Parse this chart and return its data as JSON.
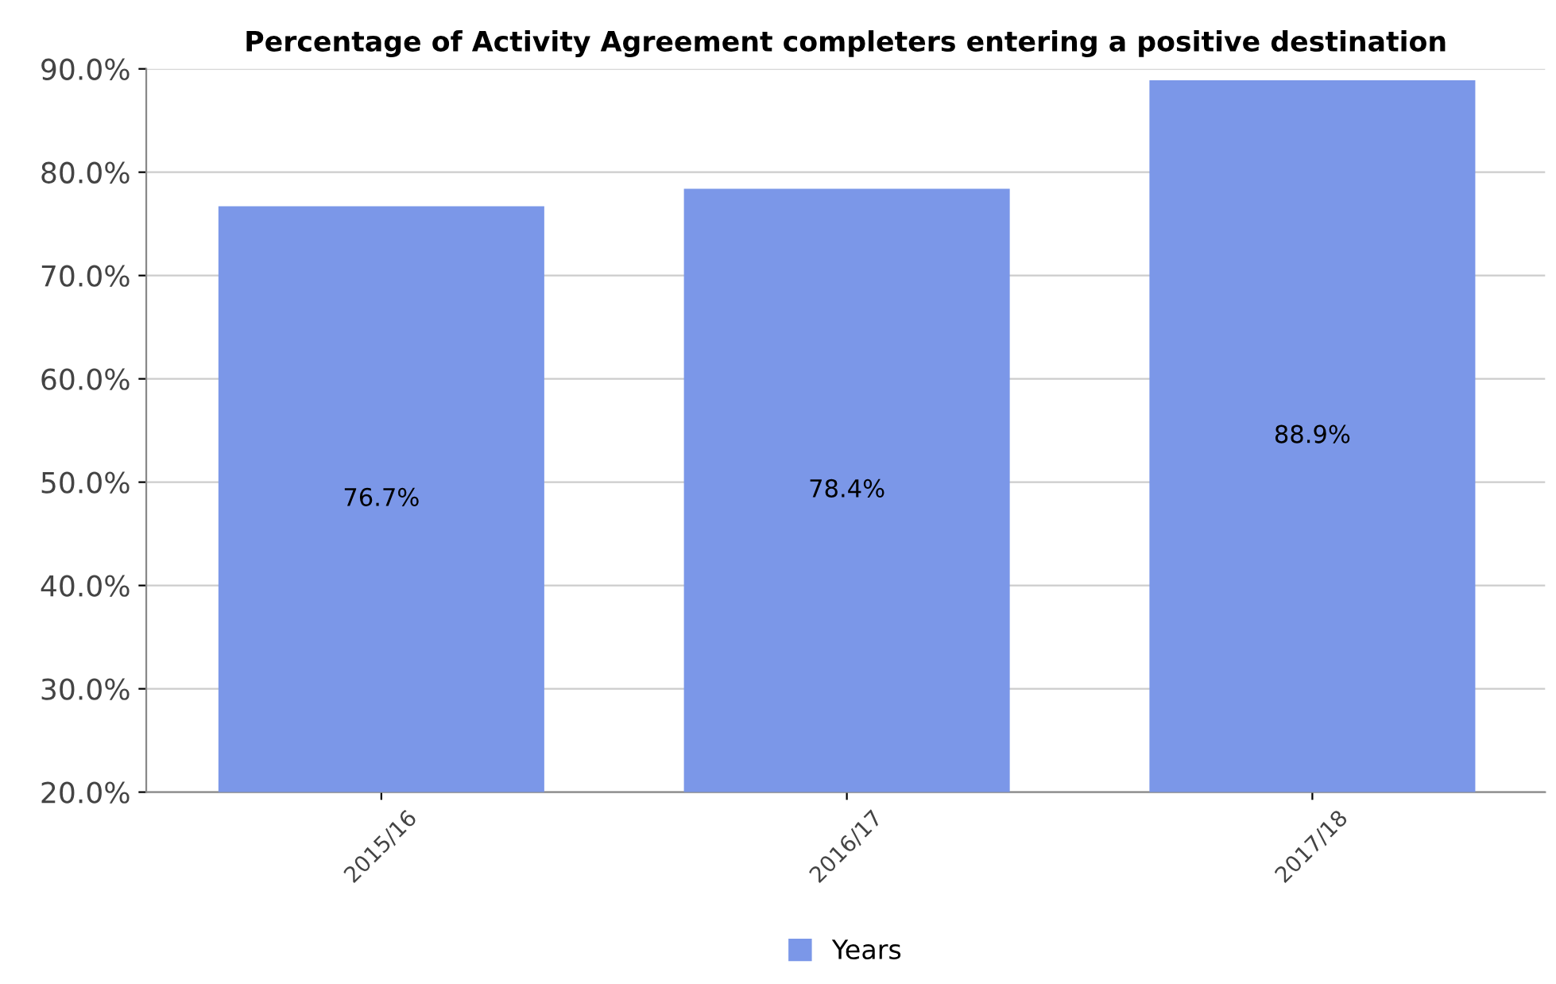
{
  "chart_data": {
    "type": "bar",
    "title": "Percentage of Activity Agreement completers entering a positive destination",
    "categories": [
      "2015/16",
      "2016/17",
      "2017/18"
    ],
    "series": [
      {
        "name": "Years",
        "color": "#7b97e8",
        "values": [
          76.7,
          78.4,
          88.9
        ],
        "value_labels": [
          "76.7%",
          "78.4%",
          "88.9%"
        ]
      }
    ],
    "ylim": [
      20,
      90
    ],
    "yticks": [
      {
        "value": 20,
        "label": "20.0%"
      },
      {
        "value": 30,
        "label": "30.0%"
      },
      {
        "value": 40,
        "label": "40.0%"
      },
      {
        "value": 50,
        "label": "50.0%"
      },
      {
        "value": 60,
        "label": "60.0%"
      },
      {
        "value": 70,
        "label": "70.0%"
      },
      {
        "value": 80,
        "label": "80.0%"
      },
      {
        "value": 90,
        "label": "90.0%"
      }
    ],
    "grid": "y",
    "legend": "bottom"
  }
}
